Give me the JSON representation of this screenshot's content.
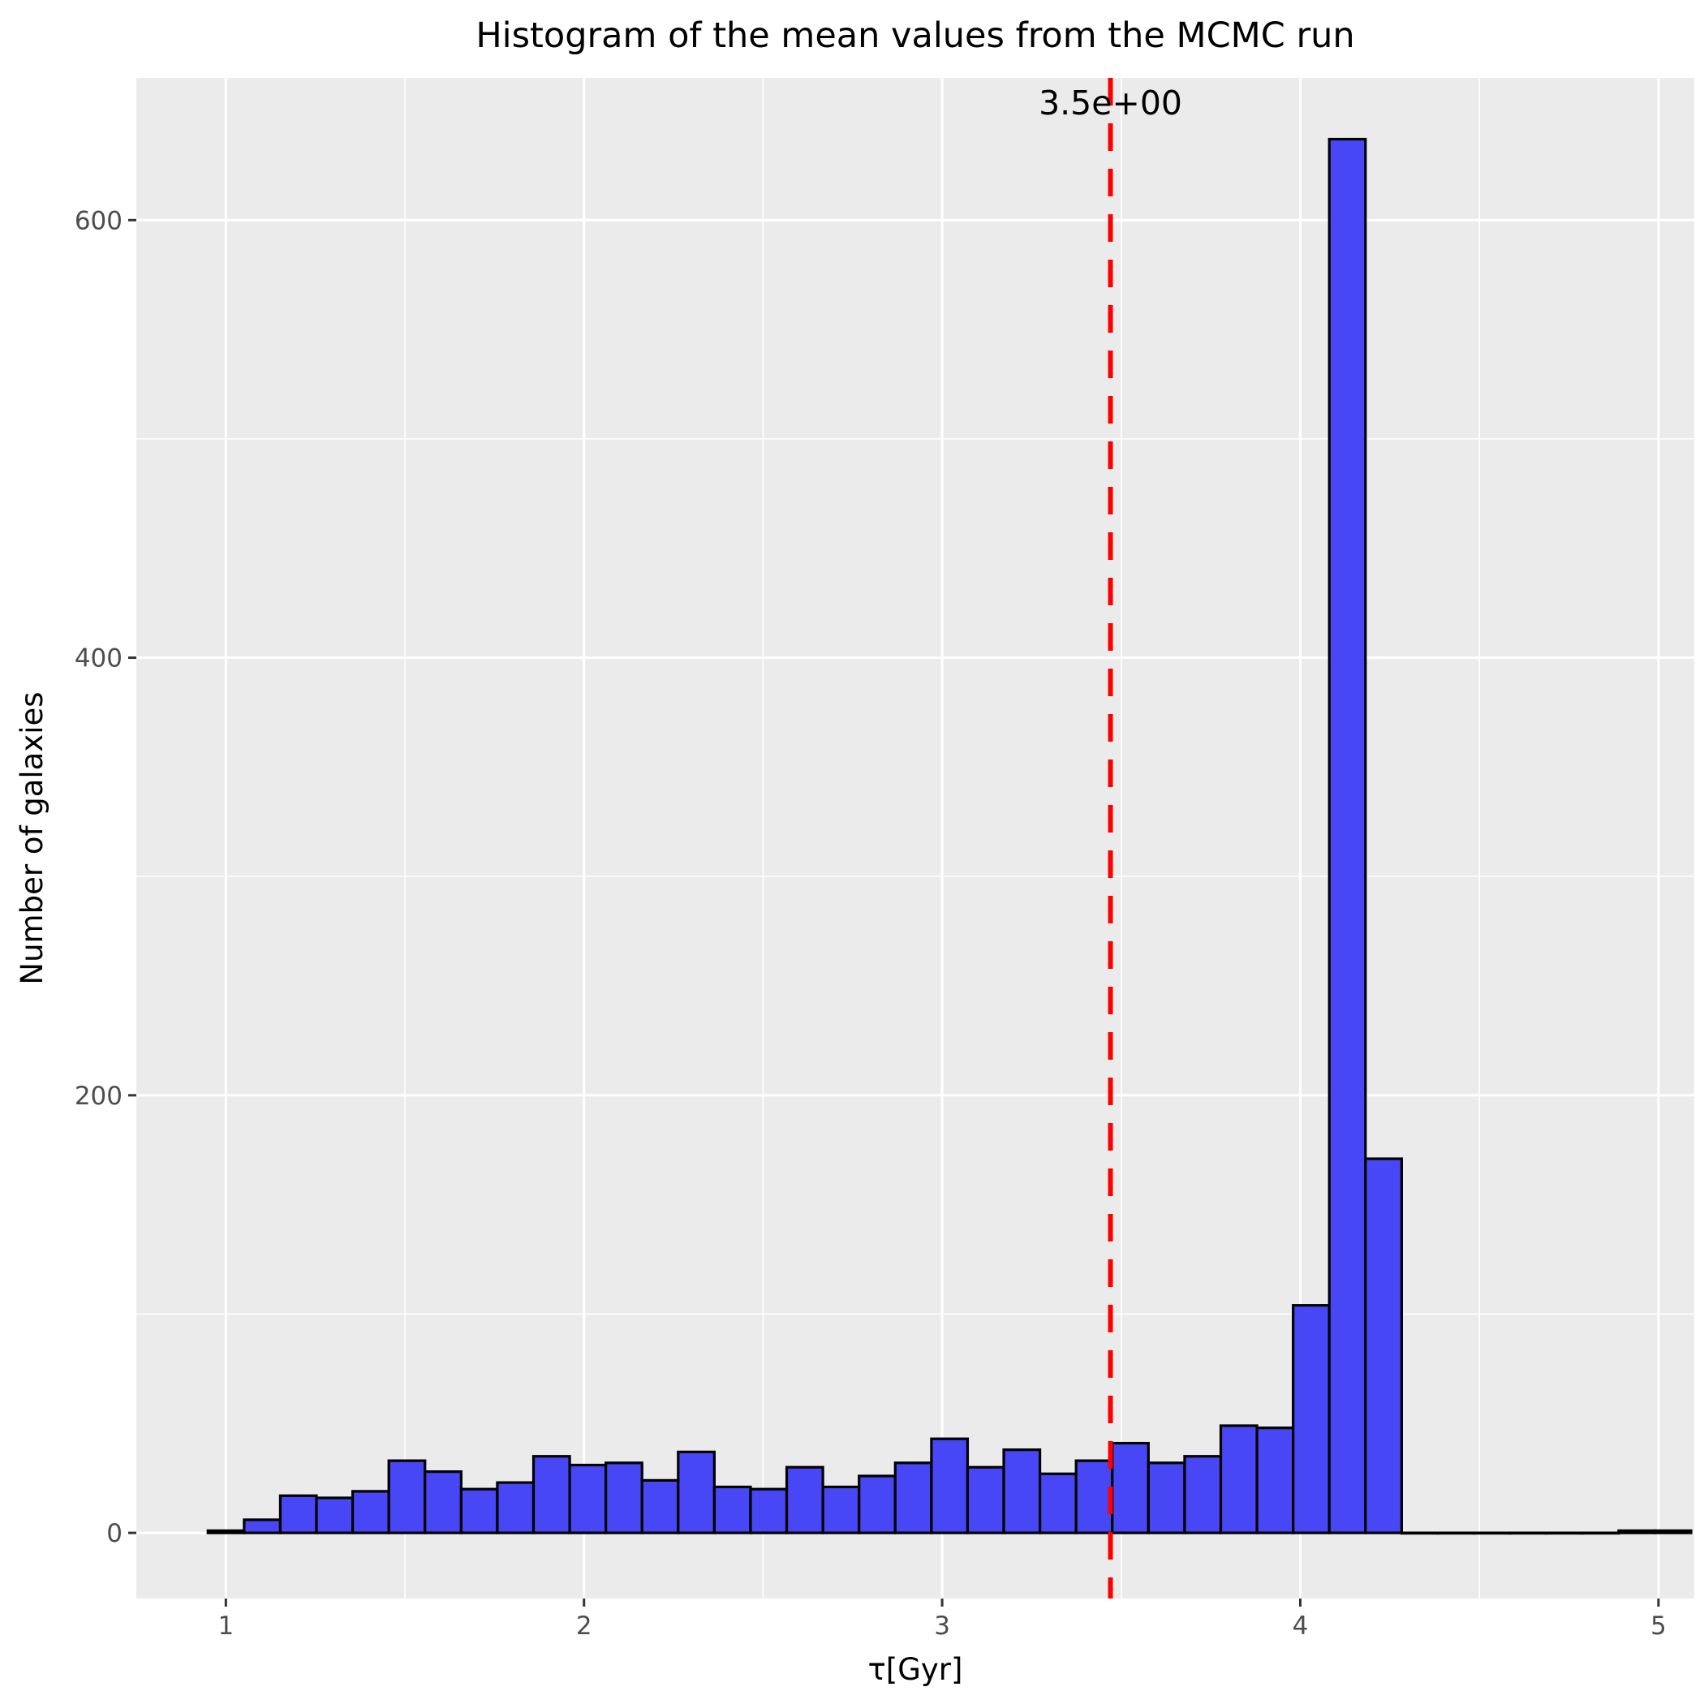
{
  "chart_data": {
    "type": "bar",
    "subtype": "histogram",
    "title": "Histogram of the mean values from the MCMC run",
    "xlabel": "τ[Gyr]",
    "ylabel": "Number of galaxies",
    "xlim": [
      0.75,
      5.1
    ],
    "ylim": [
      -30,
      665
    ],
    "x_ticks": [
      1,
      2,
      3,
      4,
      5
    ],
    "y_ticks": [
      0,
      200,
      400,
      600
    ],
    "x_tick_labels": [
      "1",
      "2",
      "3",
      "4",
      "5"
    ],
    "y_tick_labels": [
      "0",
      "200",
      "400",
      "600"
    ],
    "x_minor_ticks": [
      1.5,
      2.5,
      3.5,
      4.5
    ],
    "y_minor_ticks": [
      100,
      300,
      500
    ],
    "grid": true,
    "bins": {
      "start": 0.95,
      "width": 0.101,
      "counts": [
        1,
        6,
        17,
        16,
        19,
        33,
        28,
        20,
        23,
        35,
        31,
        32,
        24,
        37,
        21,
        20,
        30,
        21,
        26,
        32,
        43,
        30,
        38,
        27,
        33,
        41,
        32,
        35,
        49,
        48,
        104,
        637,
        171,
        0,
        0,
        0,
        0,
        0,
        0,
        1,
        1
      ]
    },
    "vline": {
      "x": 3.47,
      "label": "3.5e+00",
      "color": "#ff0000",
      "style": "dashed"
    },
    "colors": {
      "bar_fill": "#4747f5",
      "bar_stroke": "#000000",
      "panel_bg": "#ebebeb",
      "grid": "#ffffff"
    }
  }
}
